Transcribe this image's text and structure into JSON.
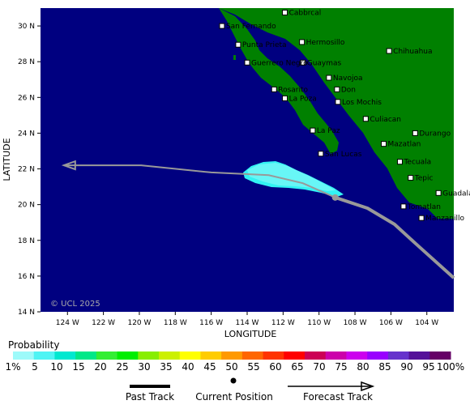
{
  "axes": {
    "xlabel": "LONGITUDE",
    "ylabel": "LATITUDE",
    "lon_ticks": [
      "124 W",
      "122 W",
      "120 W",
      "118 W",
      "116 W",
      "114 W",
      "112 W",
      "110 W",
      "108 W",
      "106 W",
      "104 W"
    ],
    "lat_ticks": [
      "30 N",
      "28 N",
      "26 N",
      "24 N",
      "22 N",
      "20 N",
      "18 N",
      "16 N",
      "14 N"
    ],
    "lon_range": [
      -125.5,
      -102.5
    ],
    "lat_range": [
      14,
      31
    ]
  },
  "copyright": "© UCL 2025",
  "towns": [
    {
      "name": "Cabbrcal",
      "lon": -111.9,
      "lat": 30.75
    },
    {
      "name": "San Fernando",
      "lon": -115.4,
      "lat": 30.0
    },
    {
      "name": "Punta Prieta",
      "lon": -114.5,
      "lat": 28.95
    },
    {
      "name": "Hermosillo",
      "lon": -110.95,
      "lat": 29.1
    },
    {
      "name": "Guaymas",
      "lon": -110.9,
      "lat": 27.95
    },
    {
      "name": "Chihuahua",
      "lon": -106.1,
      "lat": 28.6
    },
    {
      "name": "Guerrero Negro",
      "lon": -114.0,
      "lat": 27.95
    },
    {
      "name": "Navojoa",
      "lon": -109.45,
      "lat": 27.1
    },
    {
      "name": "Rosarito",
      "lon": -112.5,
      "lat": 26.45
    },
    {
      "name": "Don",
      "lon": -109.0,
      "lat": 26.45
    },
    {
      "name": "La Poza",
      "lon": -111.9,
      "lat": 25.95
    },
    {
      "name": "Los Mochis",
      "lon": -108.95,
      "lat": 25.75
    },
    {
      "name": "Culiacan",
      "lon": -107.4,
      "lat": 24.8
    },
    {
      "name": "La Paz",
      "lon": -110.35,
      "lat": 24.15
    },
    {
      "name": "Durango",
      "lon": -104.65,
      "lat": 24.0
    },
    {
      "name": "Mazatlan",
      "lon": -106.4,
      "lat": 23.4
    },
    {
      "name": "San Lucas",
      "lon": -109.9,
      "lat": 22.85
    },
    {
      "name": "Tecuala",
      "lon": -105.5,
      "lat": 22.4
    },
    {
      "name": "Tepic",
      "lon": -104.9,
      "lat": 21.5
    },
    {
      "name": "Guadalajara",
      "lon": -103.35,
      "lat": 20.65
    },
    {
      "name": "Tomatlan",
      "lon": -105.3,
      "lat": 19.9
    },
    {
      "name": "Manzanillo",
      "lon": -104.3,
      "lat": 19.25
    }
  ],
  "track": {
    "current": {
      "lon": -109.1,
      "lat": 20.4
    },
    "past": [
      {
        "lon": -102.5,
        "lat": 15.9
      },
      {
        "lon": -104.6,
        "lat": 17.8
      },
      {
        "lon": -105.8,
        "lat": 18.9
      },
      {
        "lon": -107.3,
        "lat": 19.8
      },
      {
        "lon": -109.1,
        "lat": 20.4
      }
    ],
    "forecast": [
      {
        "lon": -109.1,
        "lat": 20.4
      },
      {
        "lon": -110.9,
        "lat": 21.2
      },
      {
        "lon": -112.8,
        "lat": 21.65
      },
      {
        "lon": -116.0,
        "lat": 21.8
      },
      {
        "lon": -119.9,
        "lat": 22.2
      },
      {
        "lon": -124.2,
        "lat": 22.2
      }
    ]
  },
  "probability_area_percent": 5,
  "legend": {
    "title": "Probability",
    "labels": [
      "1%",
      "5",
      "10",
      "15",
      "20",
      "25",
      "30",
      "35",
      "40",
      "45",
      "50",
      "55",
      "60",
      "65",
      "70",
      "75",
      "80",
      "85",
      "90",
      "95",
      "100%"
    ],
    "colors": [
      "#9dfafa",
      "#4ff4f4",
      "#00e8d0",
      "#00e888",
      "#33ee33",
      "#00ee00",
      "#88ee00",
      "#ccf000",
      "#ffff00",
      "#ffcc00",
      "#ff9900",
      "#ff6600",
      "#ff3300",
      "#ff0000",
      "#cc0055",
      "#cc00aa",
      "#cc00ee",
      "#9900ff",
      "#6633cc",
      "#551199",
      "#660066"
    ],
    "past_track": "Past Track",
    "current_position": "Current Position",
    "forecast_track": "Forecast Track"
  },
  "colors": {
    "ocean": "#000080",
    "land": "#008000",
    "track": "#999999",
    "area": "#33f3f3"
  }
}
